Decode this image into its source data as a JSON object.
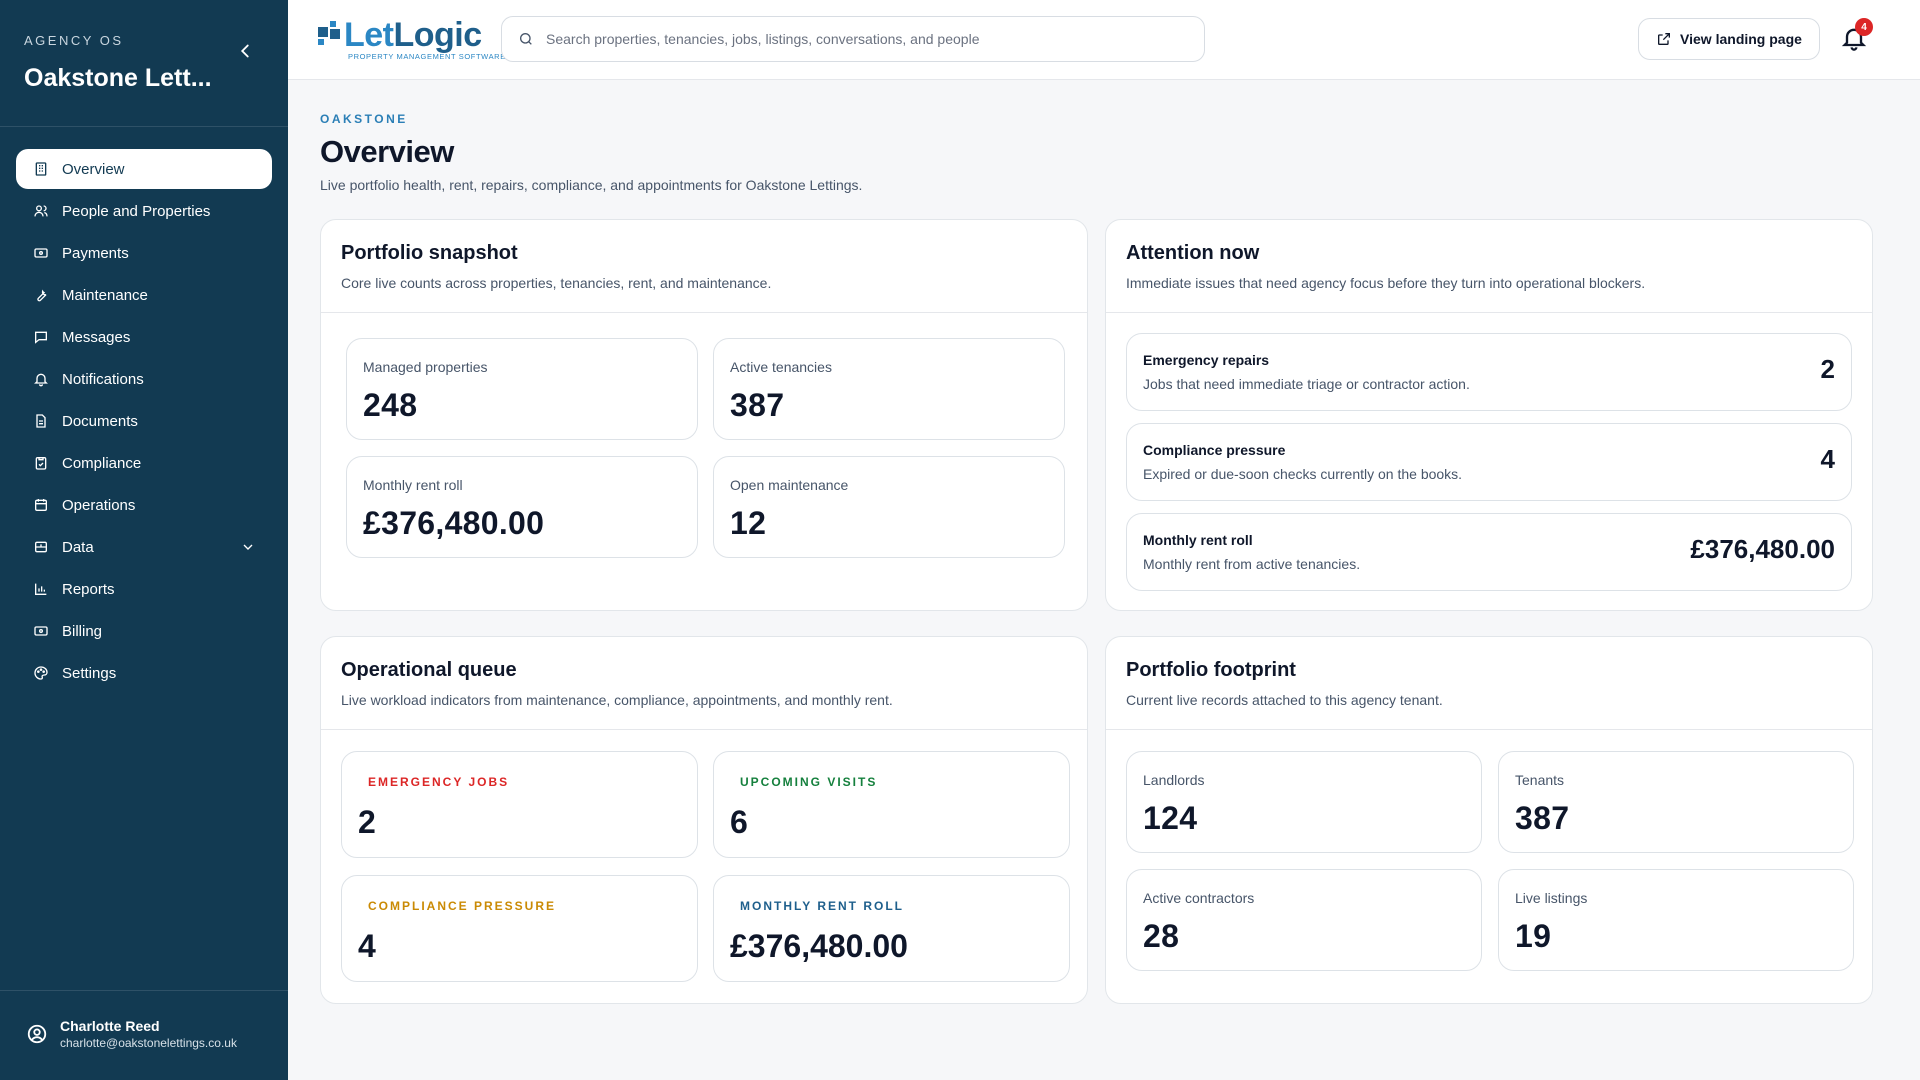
{
  "sidebar": {
    "agency_label": "AGENCY OS",
    "agency_name": "Oakstone Lett...",
    "items": [
      {
        "label": "Overview",
        "icon": "building-icon",
        "active": true
      },
      {
        "label": "People and Properties",
        "icon": "people-icon"
      },
      {
        "label": "Payments",
        "icon": "payments-icon"
      },
      {
        "label": "Maintenance",
        "icon": "wrench-icon"
      },
      {
        "label": "Messages",
        "icon": "message-icon"
      },
      {
        "label": "Notifications",
        "icon": "bell-icon"
      },
      {
        "label": "Documents",
        "icon": "document-icon"
      },
      {
        "label": "Compliance",
        "icon": "clipboard-check-icon"
      },
      {
        "label": "Operations",
        "icon": "calendar-icon"
      },
      {
        "label": "Data",
        "icon": "database-icon",
        "expandable": true
      },
      {
        "label": "Reports",
        "icon": "bar-chart-icon"
      },
      {
        "label": "Billing",
        "icon": "billing-icon"
      },
      {
        "label": "Settings",
        "icon": "palette-icon"
      }
    ],
    "user": {
      "name": "Charlotte Reed",
      "email": "charlotte@oakstonelettings.co.uk"
    }
  },
  "topbar": {
    "logo": {
      "text_a": "Let",
      "text_b": "Logic",
      "tagline": "PROPERTY MANAGEMENT SOFTWARE"
    },
    "search_placeholder": "Search properties, tenancies, jobs, listings, conversations, and people",
    "landing_button": "View landing page",
    "notification_count": "4"
  },
  "header": {
    "eyebrow": "OAKSTONE",
    "title": "Overview",
    "subtitle": "Live portfolio health, rent, repairs, compliance, and appointments for Oakstone Lettings."
  },
  "portfolio_snapshot": {
    "title": "Portfolio snapshot",
    "subtitle": "Core live counts across properties, tenancies, rent, and maintenance.",
    "stats": [
      {
        "label": "Managed properties",
        "value": "248"
      },
      {
        "label": "Active tenancies",
        "value": "387"
      },
      {
        "label": "Monthly rent roll",
        "value": "£376,480.00"
      },
      {
        "label": "Open maintenance",
        "value": "12"
      }
    ]
  },
  "attention_now": {
    "title": "Attention now",
    "subtitle": "Immediate issues that need agency focus before they turn into operational blockers.",
    "items": [
      {
        "title": "Emergency repairs",
        "subtitle": "Jobs that need immediate triage or contractor action.",
        "value": "2"
      },
      {
        "title": "Compliance pressure",
        "subtitle": "Expired or due-soon checks currently on the books.",
        "value": "4"
      },
      {
        "title": "Monthly rent roll",
        "subtitle": "Monthly rent from active tenancies.",
        "value": "£376,480.00"
      }
    ]
  },
  "operational_queue": {
    "title": "Operational queue",
    "subtitle": "Live workload indicators from maintenance, compliance, appointments, and monthly rent.",
    "stats": [
      {
        "label": "EMERGENCY JOBS",
        "value": "2",
        "color": "#dc2626"
      },
      {
        "label": "UPCOMING VISITS",
        "value": "6",
        "color": "#15803d"
      },
      {
        "label": "COMPLIANCE PRESSURE",
        "value": "4",
        "color": "#ca8a04"
      },
      {
        "label": "MONTHLY RENT ROLL",
        "value": "£376,480.00",
        "color": "#1e5f8c"
      }
    ]
  },
  "portfolio_footprint": {
    "title": "Portfolio footprint",
    "subtitle": "Current live records attached to this agency tenant.",
    "stats": [
      {
        "label": "Landlords",
        "value": "124"
      },
      {
        "label": "Tenants",
        "value": "387"
      },
      {
        "label": "Active contractors",
        "value": "28"
      },
      {
        "label": "Live listings",
        "value": "19"
      }
    ]
  }
}
